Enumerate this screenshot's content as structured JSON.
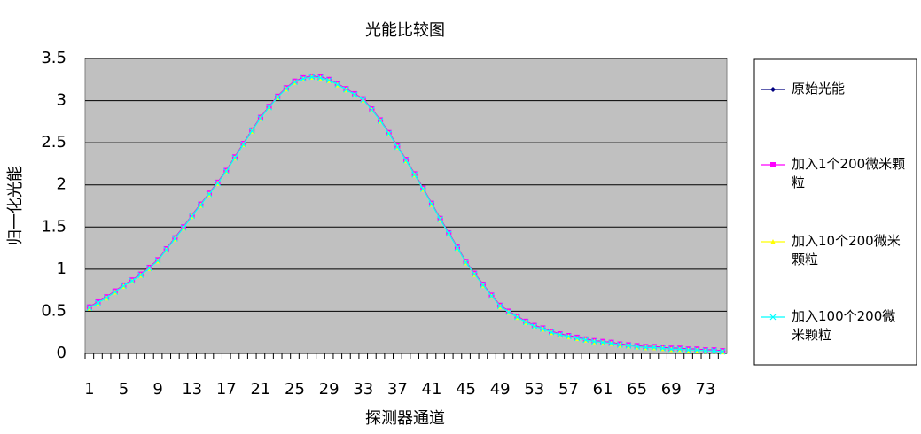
{
  "chart_data": {
    "type": "line",
    "title": "光能比较图",
    "x_label": "探测器通道",
    "y_label": "归一化光能",
    "categories": [
      "1",
      null,
      null,
      null,
      "5",
      null,
      null,
      null,
      "9",
      null,
      null,
      null,
      "13",
      null,
      null,
      null,
      "17",
      null,
      null,
      null,
      "21",
      null,
      null,
      null,
      "25",
      null,
      null,
      null,
      "29",
      null,
      null,
      null,
      "33",
      null,
      null,
      null,
      "37",
      null,
      null,
      null,
      "41",
      null,
      null,
      null,
      "45",
      null,
      null,
      null,
      "49",
      null,
      null,
      null,
      "53",
      null,
      null,
      null,
      "57",
      null,
      null,
      null,
      "61",
      null,
      null,
      null,
      "65",
      null,
      null,
      null,
      "69",
      null,
      null,
      null,
      "73",
      null,
      null
    ],
    "series": [
      {
        "name": "原始光能",
        "color": "#000080",
        "marker": "diamond",
        "values": [
          0.55,
          0.61,
          0.67,
          0.74,
          0.81,
          0.87,
          0.94,
          1.02,
          1.11,
          1.24,
          1.37,
          1.5,
          1.64,
          1.77,
          1.9,
          2.03,
          2.17,
          2.33,
          2.49,
          2.65,
          2.8,
          2.93,
          3.05,
          3.15,
          3.23,
          3.27,
          3.29,
          3.28,
          3.25,
          3.2,
          3.14,
          3.08,
          3.02,
          2.9,
          2.77,
          2.62,
          2.46,
          2.3,
          2.13,
          1.96,
          1.78,
          1.6,
          1.43,
          1.26,
          1.09,
          0.95,
          0.82,
          0.69,
          0.57,
          0.5,
          0.44,
          0.38,
          0.33,
          0.3,
          0.26,
          0.23,
          0.21,
          0.19,
          0.17,
          0.15,
          0.14,
          0.13,
          0.11,
          0.1,
          0.09,
          0.08,
          0.08,
          0.07,
          0.06,
          0.06,
          0.05,
          0.05,
          0.04,
          0.04,
          0.03
        ]
      },
      {
        "name": "加入1个200微米颗粒",
        "color": "#ff00ff",
        "marker": "square",
        "values": [
          0.55,
          0.61,
          0.67,
          0.74,
          0.81,
          0.87,
          0.94,
          1.02,
          1.11,
          1.24,
          1.37,
          1.5,
          1.64,
          1.77,
          1.9,
          2.03,
          2.17,
          2.33,
          2.49,
          2.65,
          2.8,
          2.93,
          3.05,
          3.15,
          3.23,
          3.27,
          3.29,
          3.28,
          3.25,
          3.2,
          3.14,
          3.08,
          3.02,
          2.9,
          2.77,
          2.62,
          2.46,
          2.3,
          2.13,
          1.96,
          1.78,
          1.6,
          1.43,
          1.26,
          1.09,
          0.95,
          0.82,
          0.69,
          0.57,
          0.5,
          0.44,
          0.38,
          0.33,
          0.3,
          0.26,
          0.23,
          0.21,
          0.19,
          0.17,
          0.15,
          0.14,
          0.13,
          0.11,
          0.1,
          0.09,
          0.08,
          0.08,
          0.07,
          0.06,
          0.06,
          0.05,
          0.05,
          0.04,
          0.04,
          0.03
        ]
      },
      {
        "name": "加入10个200微米颗粒",
        "color": "#ffff00",
        "marker": "triangle",
        "values": [
          0.54,
          0.6,
          0.66,
          0.73,
          0.8,
          0.86,
          0.93,
          1.01,
          1.1,
          1.23,
          1.36,
          1.49,
          1.63,
          1.76,
          1.89,
          2.02,
          2.16,
          2.32,
          2.48,
          2.64,
          2.79,
          2.92,
          3.04,
          3.14,
          3.22,
          3.26,
          3.28,
          3.27,
          3.24,
          3.19,
          3.13,
          3.07,
          3.01,
          2.89,
          2.76,
          2.61,
          2.45,
          2.29,
          2.12,
          1.95,
          1.77,
          1.59,
          1.42,
          1.25,
          1.08,
          0.94,
          0.81,
          0.68,
          0.56,
          0.49,
          0.43,
          0.37,
          0.32,
          0.29,
          0.25,
          0.22,
          0.2,
          0.18,
          0.16,
          0.14,
          0.13,
          0.12,
          0.1,
          0.09,
          0.08,
          0.07,
          0.07,
          0.06,
          0.05,
          0.05,
          0.04,
          0.04,
          0.03,
          0.03,
          0.02
        ]
      },
      {
        "name": "加入100个200微米颗粒",
        "color": "#00ffff",
        "marker": "x",
        "values": [
          0.54,
          0.6,
          0.66,
          0.73,
          0.8,
          0.86,
          0.93,
          1.01,
          1.1,
          1.23,
          1.36,
          1.49,
          1.63,
          1.76,
          1.89,
          2.02,
          2.16,
          2.32,
          2.48,
          2.64,
          2.79,
          2.92,
          3.04,
          3.14,
          3.22,
          3.26,
          3.28,
          3.27,
          3.24,
          3.19,
          3.13,
          3.07,
          3.01,
          2.89,
          2.76,
          2.61,
          2.45,
          2.29,
          2.12,
          1.95,
          1.77,
          1.59,
          1.42,
          1.25,
          1.08,
          0.94,
          0.81,
          0.68,
          0.56,
          0.49,
          0.43,
          0.37,
          0.32,
          0.29,
          0.25,
          0.22,
          0.2,
          0.18,
          0.16,
          0.14,
          0.13,
          0.12,
          0.1,
          0.09,
          0.08,
          0.07,
          0.07,
          0.06,
          0.05,
          0.05,
          0.04,
          0.04,
          0.03,
          0.03,
          0.02
        ]
      }
    ],
    "ylim": [
      0,
      3.5
    ],
    "yticks": [
      0,
      0.5,
      1,
      1.5,
      2,
      2.5,
      3,
      3.5
    ],
    "grid": true,
    "legend": "right",
    "plot_background": "#c0c0c0"
  }
}
